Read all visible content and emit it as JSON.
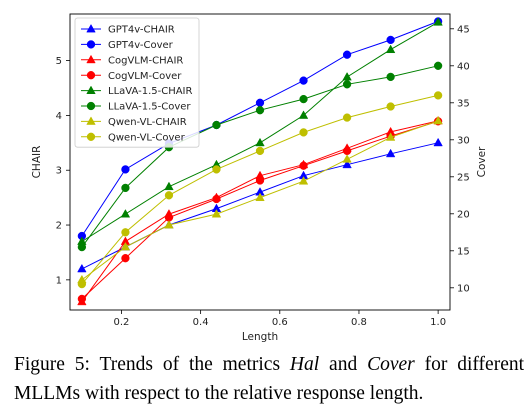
{
  "chart_data": {
    "type": "line",
    "x": [
      0.1,
      0.21,
      0.32,
      0.44,
      0.55,
      0.66,
      0.77,
      0.88,
      1.0
    ],
    "xlabel": "Length",
    "ylabel": "CHAIR",
    "y2label": "Cover",
    "xlim": [
      0.07,
      1.03
    ],
    "ylim": [
      0.45,
      5.85
    ],
    "y2lim": [
      7,
      47
    ],
    "xticks": [
      "0.2",
      "0.4",
      "0.6",
      "0.8",
      "1.0"
    ],
    "yticks": [
      "1",
      "2",
      "3",
      "4",
      "5"
    ],
    "y2ticks": [
      "10",
      "15",
      "20",
      "25",
      "30",
      "35",
      "40",
      "45"
    ],
    "grid": false,
    "legend_position": "top-left",
    "series": [
      {
        "name": "GPT4v-CHAIR",
        "axis": "left",
        "marker": "triangle",
        "color": "#0000ff",
        "values": [
          1.2,
          1.6,
          2.0,
          2.3,
          2.6,
          2.9,
          3.1,
          3.3,
          3.5
        ]
      },
      {
        "name": "GPT4v-Cover",
        "axis": "right",
        "marker": "circle",
        "color": "#0000ff",
        "values": [
          17.0,
          26.0,
          29.5,
          32.0,
          35.0,
          38.0,
          41.5,
          43.5,
          46.0
        ]
      },
      {
        "name": "CogVLM-CHAIR",
        "axis": "left",
        "marker": "triangle",
        "color": "#ff0000",
        "values": [
          0.6,
          1.7,
          2.2,
          2.5,
          2.9,
          3.1,
          3.4,
          3.7,
          3.9
        ]
      },
      {
        "name": "CogVLM-Cover",
        "axis": "right",
        "marker": "circle",
        "color": "#ff0000",
        "values": [
          8.5,
          14.0,
          19.5,
          22.0,
          24.5,
          26.5,
          28.5,
          30.5,
          32.5
        ]
      },
      {
        "name": "LLaVA-1.5-CHAIR",
        "axis": "left",
        "marker": "triangle",
        "color": "#008000",
        "values": [
          1.7,
          2.2,
          2.7,
          3.1,
          3.5,
          4.0,
          4.7,
          5.2,
          5.7
        ]
      },
      {
        "name": "LLaVA-1.5-Cover",
        "axis": "right",
        "marker": "circle",
        "color": "#008000",
        "values": [
          15.5,
          23.5,
          29.0,
          32.0,
          34.0,
          35.5,
          37.5,
          38.5,
          40.0
        ]
      },
      {
        "name": "Qwen-VL-CHAIR",
        "axis": "left",
        "marker": "triangle",
        "color": "#bfbf00",
        "values": [
          1.0,
          1.6,
          2.0,
          2.2,
          2.5,
          2.8,
          3.2,
          3.6,
          3.9
        ]
      },
      {
        "name": "Qwen-VL-Cover",
        "axis": "right",
        "marker": "circle",
        "color": "#bfbf00",
        "values": [
          10.5,
          17.5,
          22.5,
          26.0,
          28.5,
          31.0,
          33.0,
          34.5,
          36.0
        ]
      }
    ]
  },
  "caption": "Figure 5: Trends of the metrics Hal and Cover for different MLLMs with respect to the relative response length.",
  "caption_parts": {
    "prefix": "Figure 5: Trends of the metrics ",
    "hal": "Hal",
    "mid": " and ",
    "cover": "Cover",
    "suffix": " for different MLLMs with respect to the relative response length."
  }
}
